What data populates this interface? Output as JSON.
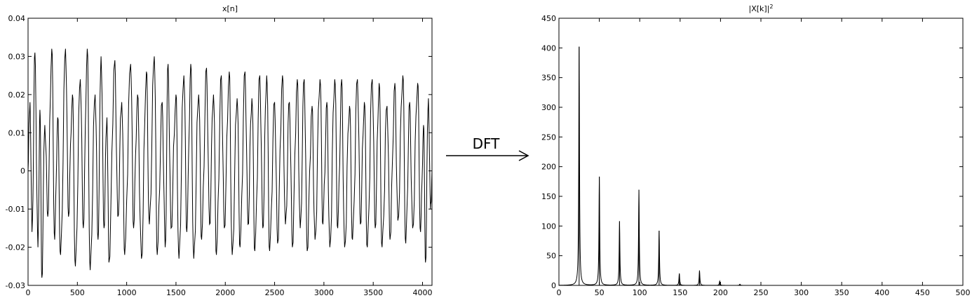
{
  "arrow_label": "DFT",
  "chart_data": [
    {
      "type": "line",
      "title": "x[n]",
      "xlim": [
        0,
        4096
      ],
      "ylim": [
        -0.03,
        0.04
      ],
      "xticks": [
        0,
        500,
        1000,
        1500,
        2000,
        2500,
        3000,
        3500,
        4000
      ],
      "yticks": [
        -0.03,
        -0.02,
        -0.01,
        0,
        0.01,
        0.02,
        0.03,
        0.04
      ],
      "xtick_labels": [
        "0",
        "500",
        "1000",
        "1500",
        "2000",
        "2500",
        "3000",
        "3500",
        "4000"
      ],
      "ytick_labels": [
        "-0.03",
        "-0.02",
        "-0.01",
        "0",
        "0.01",
        "0.02",
        "0.03",
        "0.04"
      ],
      "grid": false,
      "series": [
        {
          "color": "#000000",
          "note_values": "approximate envelope: oscillation of ~28 cycles, peaks ~0.032 decaying to ~0.023, troughs ~-0.028 to ~-0.02",
          "points": [
            [
              0,
              0.0
            ],
            [
              20,
              0.018
            ],
            [
              40,
              -0.016
            ],
            [
              70,
              0.031
            ],
            [
              100,
              -0.02
            ],
            [
              120,
              0.016
            ],
            [
              140,
              -0.028
            ],
            [
              170,
              0.012
            ],
            [
              200,
              -0.012
            ],
            [
              240,
              0.032
            ],
            [
              270,
              -0.018
            ],
            [
              300,
              0.014
            ],
            [
              330,
              -0.022
            ],
            [
              380,
              0.032
            ],
            [
              410,
              -0.012
            ],
            [
              450,
              0.02
            ],
            [
              480,
              -0.025
            ],
            [
              530,
              0.024
            ],
            [
              560,
              -0.015
            ],
            [
              600,
              0.032
            ],
            [
              630,
              -0.026
            ],
            [
              680,
              0.02
            ],
            [
              710,
              -0.018
            ],
            [
              740,
              0.03
            ],
            [
              770,
              -0.015
            ],
            [
              800,
              0.014
            ],
            [
              820,
              -0.024
            ],
            [
              880,
              0.029
            ],
            [
              910,
              -0.012
            ],
            [
              950,
              0.018
            ],
            [
              980,
              -0.022
            ],
            [
              1040,
              0.028
            ],
            [
              1070,
              -0.015
            ],
            [
              1110,
              0.02
            ],
            [
              1150,
              -0.023
            ],
            [
              1200,
              0.026
            ],
            [
              1230,
              -0.014
            ],
            [
              1280,
              0.03
            ],
            [
              1310,
              -0.022
            ],
            [
              1360,
              0.018
            ],
            [
              1390,
              -0.02
            ],
            [
              1420,
              0.028
            ],
            [
              1450,
              -0.015
            ],
            [
              1500,
              0.02
            ],
            [
              1530,
              -0.023
            ],
            [
              1580,
              0.025
            ],
            [
              1610,
              -0.016
            ],
            [
              1650,
              0.028
            ],
            [
              1680,
              -0.023
            ],
            [
              1730,
              0.02
            ],
            [
              1760,
              -0.018
            ],
            [
              1810,
              0.027
            ],
            [
              1840,
              -0.014
            ],
            [
              1880,
              0.02
            ],
            [
              1910,
              -0.022
            ],
            [
              1960,
              0.025
            ],
            [
              1990,
              -0.015
            ],
            [
              2040,
              0.026
            ],
            [
              2070,
              -0.022
            ],
            [
              2120,
              0.019
            ],
            [
              2150,
              -0.02
            ],
            [
              2200,
              0.026
            ],
            [
              2230,
              -0.014
            ],
            [
              2270,
              0.019
            ],
            [
              2300,
              -0.021
            ],
            [
              2350,
              0.025
            ],
            [
              2380,
              -0.015
            ],
            [
              2420,
              0.025
            ],
            [
              2450,
              -0.021
            ],
            [
              2500,
              0.018
            ],
            [
              2530,
              -0.019
            ],
            [
              2580,
              0.025
            ],
            [
              2610,
              -0.014
            ],
            [
              2650,
              0.018
            ],
            [
              2680,
              -0.02
            ],
            [
              2730,
              0.024
            ],
            [
              2760,
              -0.015
            ],
            [
              2800,
              0.024
            ],
            [
              2830,
              -0.021
            ],
            [
              2880,
              0.017
            ],
            [
              2910,
              -0.018
            ],
            [
              2960,
              0.024
            ],
            [
              2990,
              -0.014
            ],
            [
              3030,
              0.018
            ],
            [
              3060,
              -0.02
            ],
            [
              3110,
              0.024
            ],
            [
              3140,
              -0.015
            ],
            [
              3180,
              0.024
            ],
            [
              3210,
              -0.02
            ],
            [
              3260,
              0.017
            ],
            [
              3290,
              -0.018
            ],
            [
              3340,
              0.024
            ],
            [
              3370,
              -0.014
            ],
            [
              3410,
              0.018
            ],
            [
              3440,
              -0.02
            ],
            [
              3490,
              0.024
            ],
            [
              3520,
              -0.015
            ],
            [
              3560,
              0.023
            ],
            [
              3590,
              -0.02
            ],
            [
              3640,
              0.017
            ],
            [
              3670,
              -0.018
            ],
            [
              3720,
              0.023
            ],
            [
              3750,
              -0.013
            ],
            [
              3800,
              0.025
            ],
            [
              3830,
              -0.019
            ],
            [
              3870,
              0.018
            ],
            [
              3900,
              -0.015
            ],
            [
              3950,
              0.023
            ],
            [
              3980,
              -0.016
            ],
            [
              4010,
              0.012
            ],
            [
              4030,
              -0.024
            ],
            [
              4060,
              0.019
            ],
            [
              4080,
              -0.01
            ],
            [
              4096,
              0.0
            ]
          ]
        }
      ]
    },
    {
      "type": "line",
      "title": "|X[k]|",
      "title_superscript": "2",
      "xlim": [
        0,
        500
      ],
      "ylim": [
        0,
        450
      ],
      "xticks": [
        0,
        50,
        100,
        150,
        200,
        250,
        300,
        350,
        400,
        450,
        500
      ],
      "yticks": [
        0,
        50,
        100,
        150,
        200,
        250,
        300,
        350,
        400,
        450
      ],
      "xtick_labels": [
        "0",
        "50",
        "100",
        "150",
        "200",
        "250",
        "300",
        "350",
        "400",
        "450",
        "500"
      ],
      "ytick_labels": [
        "0",
        "50",
        "100",
        "150",
        "200",
        "250",
        "300",
        "350",
        "400",
        "450"
      ],
      "grid": false,
      "series": [
        {
          "color": "#000000",
          "peaks": [
            {
              "x": 25,
              "y": 402
            },
            {
              "x": 50,
              "y": 183
            },
            {
              "x": 75,
              "y": 108
            },
            {
              "x": 99,
              "y": 161
            },
            {
              "x": 124,
              "y": 92
            },
            {
              "x": 149,
              "y": 20
            },
            {
              "x": 174,
              "y": 25
            },
            {
              "x": 199,
              "y": 7
            },
            {
              "x": 224,
              "y": 2
            }
          ]
        }
      ]
    }
  ]
}
